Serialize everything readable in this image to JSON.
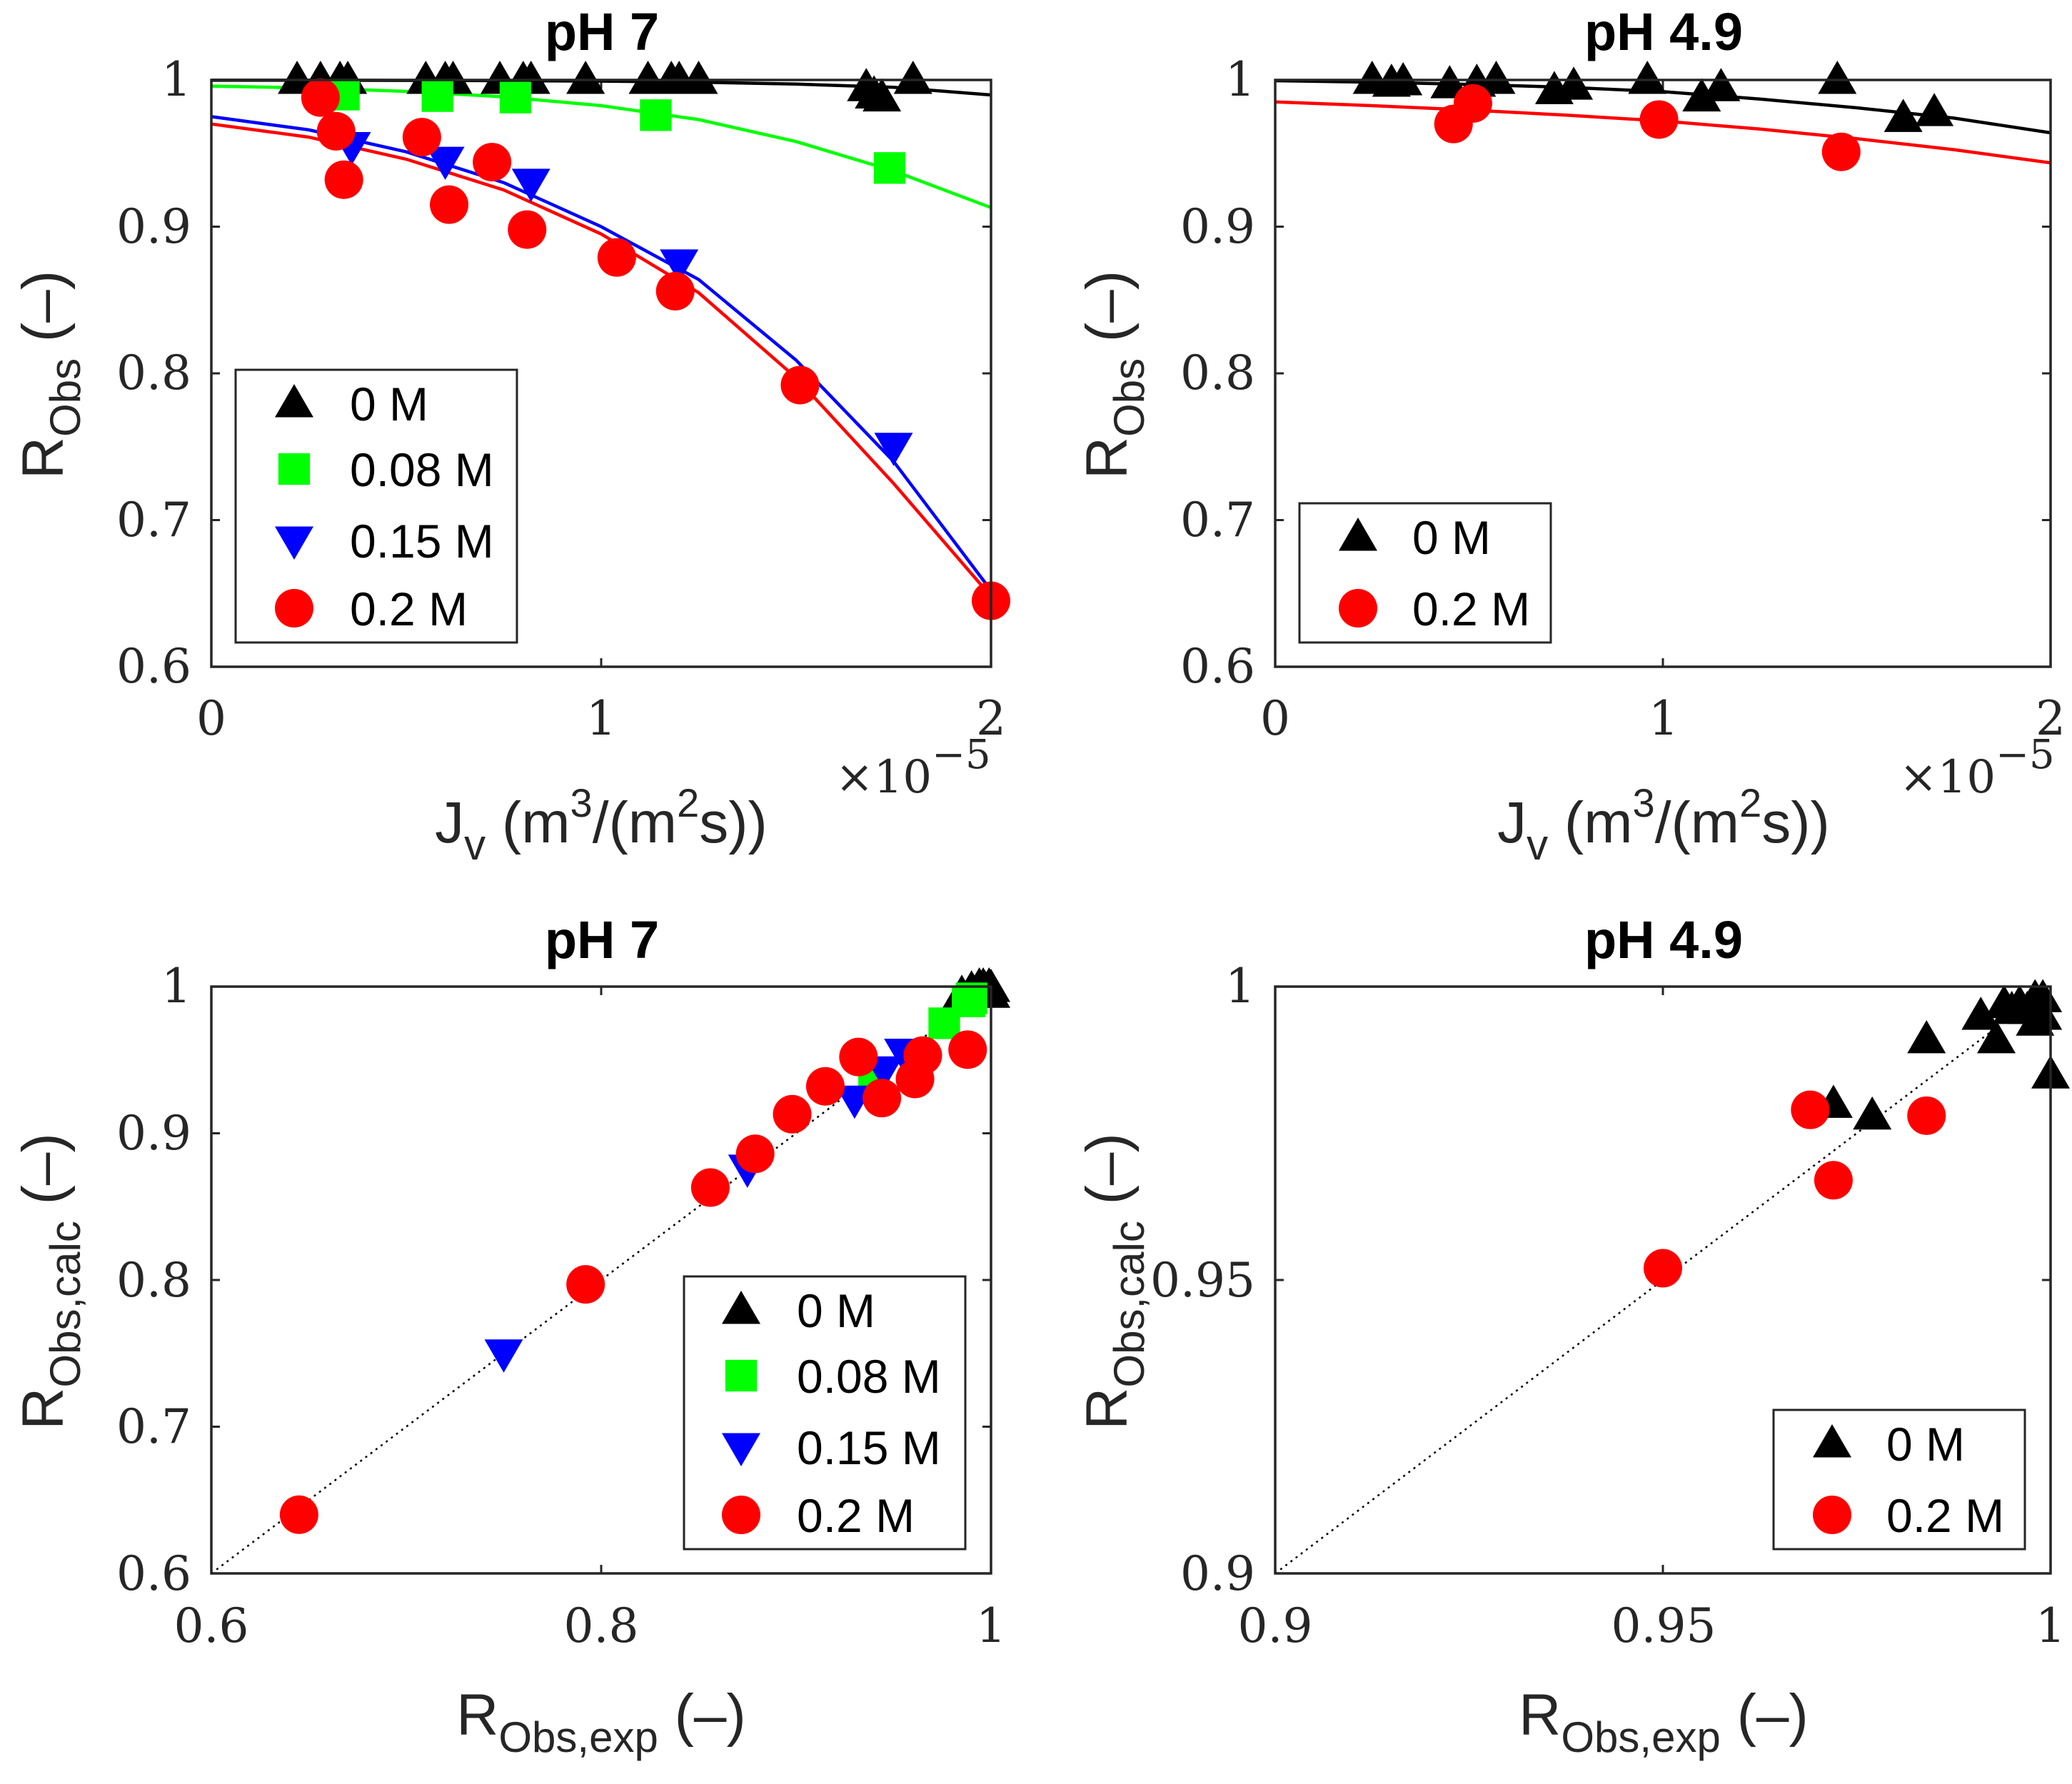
{
  "colors": {
    "s0M": "#000000",
    "s008M": "#00ff00",
    "s015M": "#0000ff",
    "s02M": "#ff0000"
  },
  "chart_data": [
    {
      "type": "scatter",
      "title": "pH 7",
      "xlabel": {
        "main": "J",
        "sub": "v",
        "text1": " (m",
        "sup1": "3",
        "text2": "/(m",
        "sup2": "2",
        "text3": "s))"
      },
      "ylabel": {
        "main": "R",
        "sub": "Obs",
        "text": " (–)"
      },
      "x_multiplier": {
        "base": "×10",
        "exp": "−5"
      },
      "xlim": [
        0,
        2
      ],
      "ylim": [
        0.6,
        1.0
      ],
      "xticks": [
        0,
        1,
        2
      ],
      "xtick_labels": [
        "0",
        "1",
        "2"
      ],
      "yticks": [
        0.6,
        0.7,
        0.8,
        0.9,
        1.0
      ],
      "ytick_labels": [
        "0.6",
        "0.7",
        "0.8",
        "0.9",
        "1"
      ],
      "legend_position": "bottom-left",
      "series": [
        {
          "name": "0 M",
          "marker": "triangle-up",
          "color": "#000000",
          "x": [
            0.22,
            0.28,
            0.33,
            0.35,
            0.55,
            0.6,
            0.62,
            0.74,
            0.8,
            0.82,
            0.96,
            1.12,
            1.18,
            1.2,
            1.25,
            1.68,
            1.7,
            1.72,
            1.8
          ],
          "y": [
            1.0,
            1.0,
            1.0,
            1.0,
            1.0,
            1.0,
            1.0,
            1.0,
            1.0,
            1.0,
            1.0,
            1.0,
            1.0,
            1.0,
            1.0,
            0.995,
            0.99,
            0.988,
            1.0
          ],
          "fit_x": [
            0,
            0.25,
            0.5,
            0.75,
            1.0,
            1.25,
            1.5,
            1.75,
            2.0
          ],
          "fit_y": [
            0.9998,
            0.9998,
            0.9997,
            0.9995,
            0.9992,
            0.9985,
            0.9972,
            0.995,
            0.9898
          ]
        },
        {
          "name": "0.08 M",
          "marker": "square",
          "color": "#00ff00",
          "x": [
            0.34,
            0.58,
            0.78,
            1.14,
            1.74
          ],
          "y": [
            0.99,
            0.989,
            0.988,
            0.976,
            0.94
          ],
          "fit_x": [
            0,
            0.25,
            0.5,
            0.75,
            1.0,
            1.25,
            1.5,
            1.75,
            2.0
          ],
          "fit_y": [
            0.9958,
            0.9945,
            0.9922,
            0.9885,
            0.9825,
            0.973,
            0.958,
            0.938,
            0.913
          ]
        },
        {
          "name": "0.15 M",
          "marker": "triangle-down",
          "color": "#0000ff",
          "x": [
            0.36,
            0.6,
            0.82,
            1.2,
            1.75
          ],
          "y": [
            0.955,
            0.945,
            0.93,
            0.875,
            0.75
          ],
          "fit_x": [
            0,
            0.25,
            0.5,
            0.75,
            1.0,
            1.25,
            1.5,
            1.75,
            2.0
          ],
          "fit_y": [
            0.975,
            0.966,
            0.951,
            0.93,
            0.9,
            0.864,
            0.809,
            0.74,
            0.652
          ]
        },
        {
          "name": "0.2 M",
          "marker": "circle",
          "color": "#ff0000",
          "x": [
            0.28,
            0.32,
            0.34,
            0.54,
            0.61,
            0.72,
            0.81,
            1.04,
            1.19,
            1.51,
            2.0
          ],
          "y": [
            0.988,
            0.965,
            0.932,
            0.961,
            0.915,
            0.944,
            0.898,
            0.879,
            0.856,
            0.792,
            0.645
          ],
          "fit_x": [
            0,
            0.25,
            0.5,
            0.75,
            1.0,
            1.25,
            1.5,
            1.75,
            2.0
          ],
          "fit_y": [
            0.97,
            0.961,
            0.946,
            0.925,
            0.895,
            0.855,
            0.797,
            0.725,
            0.648
          ]
        }
      ]
    },
    {
      "type": "scatter",
      "title": "pH 4.9",
      "xlabel": {
        "main": "J",
        "sub": "v",
        "text1": " (m",
        "sup1": "3",
        "text2": "/(m",
        "sup2": "2",
        "text3": "s))"
      },
      "ylabel": {
        "main": "R",
        "sub": "Obs",
        "text": " (–)"
      },
      "x_multiplier": {
        "base": "×10",
        "exp": "−5"
      },
      "xlim": [
        0,
        2
      ],
      "ylim": [
        0.6,
        1.0
      ],
      "xticks": [
        0,
        1,
        2
      ],
      "xtick_labels": [
        "0",
        "1",
        "2"
      ],
      "yticks": [
        0.6,
        0.7,
        0.8,
        0.9,
        1.0
      ],
      "ytick_labels": [
        "0.6",
        "0.7",
        "0.8",
        "0.9",
        "1"
      ],
      "legend_position": "bottom-left",
      "series": [
        {
          "name": "0 M",
          "marker": "triangle-up",
          "color": "#000000",
          "x": [
            0.25,
            0.3,
            0.33,
            0.45,
            0.52,
            0.57,
            0.72,
            0.77,
            0.96,
            1.1,
            1.15,
            1.45,
            1.62,
            1.7
          ],
          "y": [
            1.0,
            0.998,
            0.999,
            0.997,
            0.998,
            1.0,
            0.993,
            0.996,
            1.0,
            0.988,
            0.995,
            1.0,
            0.974,
            0.978
          ],
          "fit_x": [
            0,
            0.25,
            0.5,
            0.75,
            1.0,
            1.25,
            1.5,
            1.75,
            2.0
          ],
          "fit_y": [
            0.9995,
            0.9985,
            0.997,
            0.995,
            0.992,
            0.987,
            0.981,
            0.974,
            0.964
          ]
        },
        {
          "name": "0.2 M",
          "marker": "circle",
          "color": "#ff0000",
          "x": [
            0.46,
            0.51,
            0.99,
            1.46
          ],
          "y": [
            0.97,
            0.984,
            0.973,
            0.951
          ],
          "fit_x": [
            0,
            0.25,
            0.5,
            0.75,
            1.0,
            1.25,
            1.5,
            1.75,
            2.0
          ],
          "fit_y": [
            0.985,
            0.9825,
            0.9795,
            0.976,
            0.972,
            0.9665,
            0.96,
            0.9525,
            0.9435
          ]
        }
      ]
    },
    {
      "type": "scatter",
      "title": "pH 7",
      "xlabel": {
        "main": "R",
        "sub": "Obs,exp",
        "text": " (–)"
      },
      "ylabel": {
        "main": "R",
        "sub": "Obs,calc",
        "text": " (–)"
      },
      "xlim": [
        0.6,
        1.0
      ],
      "ylim": [
        0.6,
        1.0
      ],
      "xticks": [
        0.6,
        0.8,
        1.0
      ],
      "xtick_labels": [
        "0.6",
        "0.8",
        "1"
      ],
      "yticks": [
        0.6,
        0.7,
        0.8,
        0.9,
        1.0
      ],
      "ytick_labels": [
        "0.6",
        "0.7",
        "0.8",
        "0.9",
        "1"
      ],
      "parity_line": true,
      "legend_position": "bottom-right",
      "series": [
        {
          "name": "0 M",
          "marker": "triangle-up",
          "color": "#000000",
          "x": [
            0.985,
            0.99,
            0.994,
            0.996,
            0.998,
            1.0,
            1.0,
            0.999,
            0.997
          ],
          "y": [
            0.995,
            0.998,
            1.0,
            1.0,
            0.997,
            0.999,
            0.995,
            1.0,
            0.998
          ]
        },
        {
          "name": "0.08 M",
          "marker": "square",
          "color": "#00ff00",
          "x": [
            0.94,
            0.976,
            0.988,
            0.989,
            0.99
          ],
          "y": [
            0.938,
            0.975,
            0.99,
            0.99,
            0.992
          ]
        },
        {
          "name": "0.15 M",
          "marker": "triangle-down",
          "color": "#0000ff",
          "x": [
            0.75,
            0.875,
            0.93,
            0.945,
            0.955
          ],
          "y": [
            0.75,
            0.876,
            0.923,
            0.943,
            0.955
          ]
        },
        {
          "name": "0.2 M",
          "marker": "circle",
          "color": "#ff0000",
          "x": [
            0.645,
            0.792,
            0.856,
            0.879,
            0.898,
            0.915,
            0.932,
            0.944,
            0.961,
            0.965,
            0.988
          ],
          "y": [
            0.64,
            0.797,
            0.863,
            0.886,
            0.913,
            0.932,
            0.952,
            0.924,
            0.937,
            0.953,
            0.957
          ]
        }
      ]
    },
    {
      "type": "scatter",
      "title": "pH 4.9",
      "xlabel": {
        "main": "R",
        "sub": "Obs,exp",
        "text": " (–)"
      },
      "ylabel": {
        "main": "R",
        "sub": "Obs,calc",
        "text": " (–)"
      },
      "xlim": [
        0.9,
        1.0
      ],
      "ylim": [
        0.9,
        1.0
      ],
      "xticks": [
        0.9,
        0.95,
        1.0
      ],
      "xtick_labels": [
        "0.9",
        "0.95",
        "1"
      ],
      "yticks": [
        0.9,
        0.95,
        1.0
      ],
      "ytick_labels": [
        "0.9",
        "0.95",
        "1"
      ],
      "parity_line": true,
      "legend_position": "bottom-right",
      "series": [
        {
          "name": "0 M",
          "marker": "triangle-up",
          "color": "#000000",
          "x": [
            0.972,
            0.977,
            0.984,
            0.991,
            0.993,
            0.994,
            0.995,
            0.996,
            0.997,
            0.998,
            0.999,
            1.0,
            0.998,
            0.999
          ],
          "y": [
            0.98,
            0.978,
            0.991,
            0.995,
            0.991,
            0.997,
            0.996,
            0.997,
            0.996,
            0.998,
            0.995,
            0.985,
            0.994,
            0.998
          ]
        },
        {
          "name": "0.2 M",
          "marker": "circle",
          "color": "#ff0000",
          "x": [
            0.95,
            0.969,
            0.972,
            0.984
          ],
          "y": [
            0.952,
            0.979,
            0.967,
            0.978
          ]
        }
      ]
    }
  ]
}
